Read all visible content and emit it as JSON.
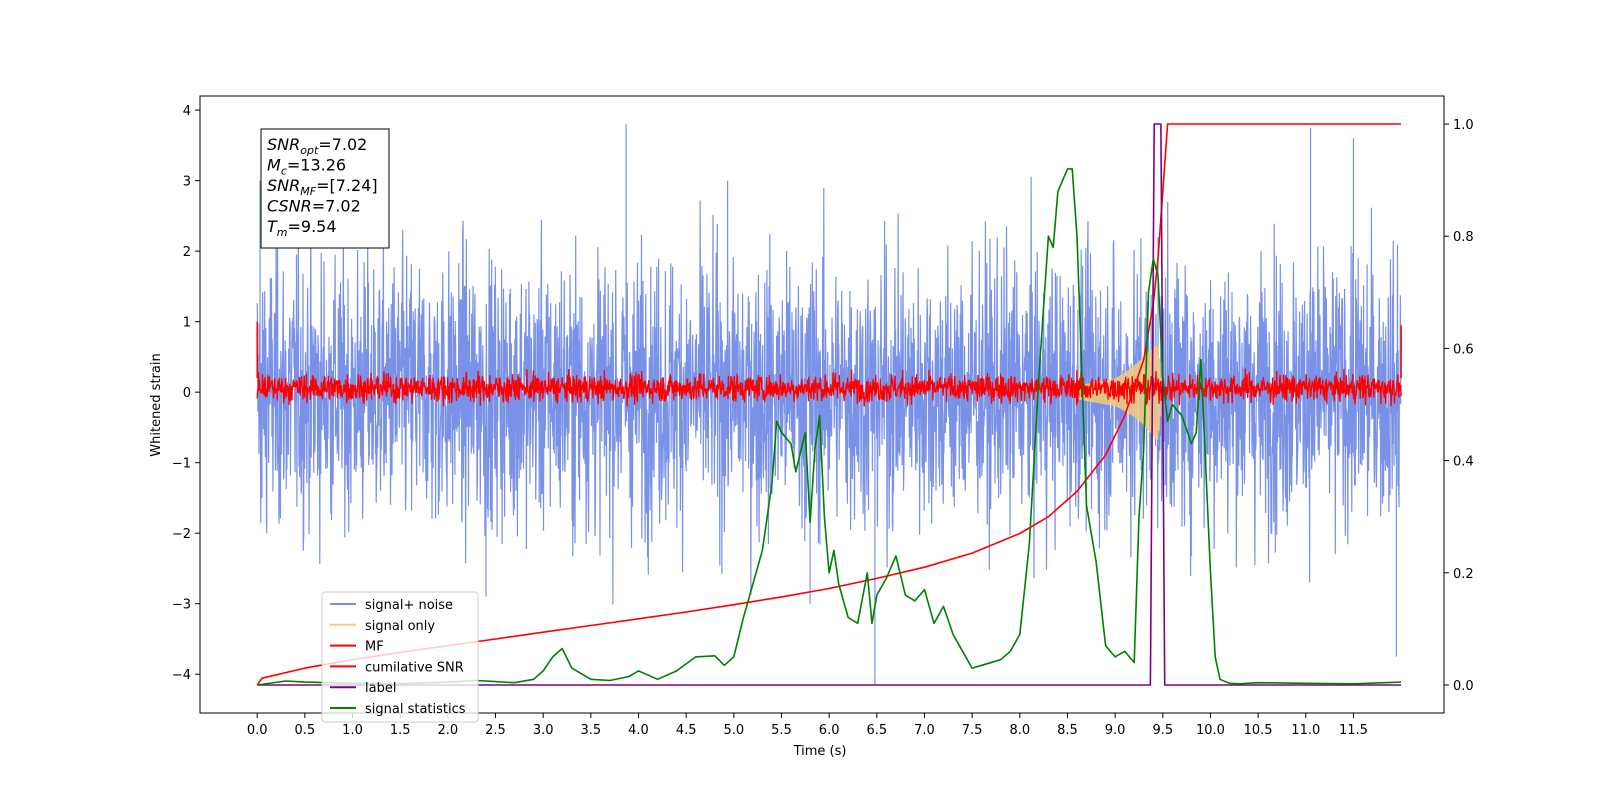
{
  "chart_data": {
    "type": "line",
    "xlabel": "Time (s)",
    "ylabel": "Whitened strain",
    "xlim": [
      -0.6,
      12.45
    ],
    "ylim": [
      -4.55,
      4.2
    ],
    "y2lim": [
      -0.05,
      1.05
    ],
    "grid": false,
    "legend_position": "bottom-left",
    "x_ticks": [
      "0.0",
      "0.5",
      "1.0",
      "1.5",
      "2.0",
      "2.5",
      "3.0",
      "3.5",
      "4.0",
      "4.5",
      "5.0",
      "5.5",
      "6.0",
      "6.5",
      "7.0",
      "7.5",
      "8.0",
      "8.5",
      "9.0",
      "9.5",
      "10.0",
      "10.5",
      "11.0",
      "11.5"
    ],
    "y_ticks": [
      "4",
      "3",
      "2",
      "1",
      "0",
      "−1",
      "−2",
      "−3",
      "−4"
    ],
    "y2_ticks": [
      "1.0",
      "0.8",
      "0.6",
      "0.4",
      "0.2",
      "0.0"
    ],
    "annotation": {
      "lines": [
        {
          "base": "SNR",
          "sub": "opt",
          "value": "=7.02"
        },
        {
          "base": "M",
          "sub": "c",
          "value": "=13.26"
        },
        {
          "base": "SNR",
          "sub": "MF",
          "value": "=[7.24]"
        },
        {
          "base": "CSNR",
          "sub": "",
          "value": "=7.02"
        },
        {
          "base": "T",
          "sub": "m",
          "value": "=9.54"
        }
      ]
    },
    "legend": [
      {
        "label": "signal+ noise",
        "color": "#7992e8"
      },
      {
        "label": "signal only",
        "color": "#f7c97a"
      },
      {
        "label": "MF",
        "color": "#ff0000"
      },
      {
        "label": "cumilative SNR",
        "color": "#ff0000"
      },
      {
        "label": "label",
        "color": "#800080"
      },
      {
        "label": "signal statistics",
        "color": "#008000"
      }
    ],
    "series": [
      {
        "name": "signal+ noise",
        "color": "#7992e8",
        "axis": "left",
        "band_x": [
          0.0,
          12.0
        ],
        "band_low": -1.3,
        "band_high": 1.3,
        "spikes": [
          [
            0.03,
            3.0
          ],
          [
            0.05,
            -1.5
          ],
          [
            0.1,
            -2.0
          ],
          [
            3.87,
            3.8
          ],
          [
            6.48,
            -4.15
          ],
          [
            11.05,
            3.75
          ],
          [
            11.5,
            3.6
          ],
          [
            11.95,
            -3.75
          ],
          [
            9.45,
            2.2
          ],
          [
            2.4,
            -2.9
          ],
          [
            5.8,
            -3.0
          ]
        ]
      },
      {
        "name": "MF",
        "color": "#ff0000",
        "axis": "left",
        "band_x": [
          0.0,
          12.0
        ],
        "band_low": -0.2,
        "band_high": 0.35,
        "spikes": [
          [
            0.0,
            1.0
          ],
          [
            12.0,
            0.95
          ]
        ]
      },
      {
        "name": "signal only",
        "color": "#f7c97a",
        "axis": "left",
        "x": [
          8.6,
          8.8,
          9.0,
          9.1,
          9.2,
          9.3,
          9.4,
          9.45,
          9.5
        ],
        "amp": [
          0.1,
          0.15,
          0.2,
          0.28,
          0.38,
          0.5,
          0.65,
          0.7,
          0.0
        ]
      },
      {
        "name": "cumilative SNR",
        "color": "#ff0000",
        "axis": "right",
        "x": [
          0.0,
          0.05,
          0.5,
          1.0,
          1.5,
          2.0,
          2.5,
          3.0,
          3.5,
          4.0,
          4.5,
          5.0,
          5.5,
          6.0,
          6.5,
          7.0,
          7.5,
          8.0,
          8.3,
          8.6,
          8.9,
          9.1,
          9.3,
          9.4,
          9.45,
          9.5,
          9.55,
          12.0
        ],
        "y": [
          0.0,
          0.012,
          0.03,
          0.045,
          0.058,
          0.07,
          0.082,
          0.094,
          0.106,
          0.118,
          0.13,
          0.143,
          0.157,
          0.172,
          0.19,
          0.21,
          0.235,
          0.27,
          0.3,
          0.345,
          0.41,
          0.48,
          0.58,
          0.68,
          0.76,
          0.88,
          1.0,
          1.0
        ]
      },
      {
        "name": "label",
        "color": "#800080",
        "axis": "right",
        "x": [
          0.0,
          9.37,
          9.41,
          9.48,
          9.52,
          12.0
        ],
        "y": [
          0.0,
          0.0,
          1.0,
          1.0,
          0.0,
          0.0
        ]
      },
      {
        "name": "signal statistics",
        "color": "#008000",
        "axis": "right",
        "x": [
          0.0,
          0.3,
          0.5,
          1.0,
          1.5,
          2.0,
          2.3,
          2.5,
          2.7,
          2.9,
          3.0,
          3.1,
          3.2,
          3.3,
          3.5,
          3.7,
          3.9,
          4.0,
          4.2,
          4.4,
          4.6,
          4.8,
          4.9,
          5.0,
          5.1,
          5.2,
          5.3,
          5.4,
          5.45,
          5.5,
          5.6,
          5.65,
          5.75,
          5.8,
          5.85,
          5.9,
          5.95,
          6.0,
          6.05,
          6.1,
          6.2,
          6.3,
          6.4,
          6.45,
          6.5,
          6.6,
          6.7,
          6.8,
          6.9,
          7.0,
          7.1,
          7.2,
          7.3,
          7.4,
          7.5,
          7.6,
          7.8,
          7.9,
          8.0,
          8.1,
          8.2,
          8.3,
          8.35,
          8.4,
          8.5,
          8.55,
          8.6,
          8.7,
          8.8,
          8.9,
          9.0,
          9.1,
          9.2,
          9.25,
          9.3,
          9.35,
          9.4,
          9.45,
          9.5,
          9.55,
          9.6,
          9.7,
          9.8,
          9.85,
          9.9,
          10.0,
          10.05,
          10.1,
          10.2,
          10.3,
          10.5,
          11.0,
          11.5,
          12.0
        ],
        "y": [
          0.0,
          0.007,
          0.005,
          0.003,
          0.002,
          0.005,
          0.008,
          0.006,
          0.004,
          0.01,
          0.025,
          0.05,
          0.065,
          0.03,
          0.01,
          0.008,
          0.015,
          0.025,
          0.01,
          0.025,
          0.05,
          0.052,
          0.035,
          0.05,
          0.12,
          0.18,
          0.24,
          0.36,
          0.47,
          0.45,
          0.43,
          0.38,
          0.45,
          0.29,
          0.42,
          0.48,
          0.3,
          0.2,
          0.24,
          0.18,
          0.12,
          0.11,
          0.2,
          0.11,
          0.16,
          0.19,
          0.23,
          0.16,
          0.15,
          0.17,
          0.11,
          0.14,
          0.09,
          0.06,
          0.03,
          0.035,
          0.045,
          0.06,
          0.09,
          0.25,
          0.55,
          0.8,
          0.78,
          0.88,
          0.92,
          0.92,
          0.8,
          0.32,
          0.22,
          0.07,
          0.05,
          0.06,
          0.04,
          0.3,
          0.42,
          0.7,
          0.76,
          0.73,
          0.55,
          0.47,
          0.5,
          0.48,
          0.43,
          0.45,
          0.58,
          0.2,
          0.05,
          0.01,
          0.003,
          0.002,
          0.004,
          0.003,
          0.002,
          0.005
        ]
      }
    ]
  }
}
